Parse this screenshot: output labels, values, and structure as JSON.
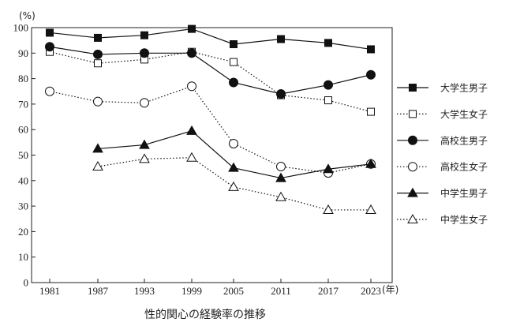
{
  "chart_data": {
    "type": "line",
    "title": "性的関心の経験率の推移",
    "y_unit_label": "(%)",
    "x_unit_label": "(年)",
    "x": [
      "1981",
      "1987",
      "1993",
      "1999",
      "2005",
      "2011",
      "2017",
      "2023"
    ],
    "ylim": [
      0,
      100
    ],
    "yticks": [
      0,
      10,
      20,
      30,
      40,
      50,
      60,
      70,
      80,
      90,
      100
    ],
    "grid": false,
    "legend_position": "right",
    "series": [
      {
        "name": "大学生男子",
        "marker": "filled-square",
        "line": "solid",
        "values": [
          98,
          96,
          97,
          99.5,
          93.5,
          95.5,
          94,
          91.5
        ]
      },
      {
        "name": "大学生女子",
        "marker": "open-square",
        "line": "dotted",
        "values": [
          90.5,
          86,
          87.5,
          90.5,
          86.5,
          73.5,
          71.5,
          67
        ]
      },
      {
        "name": "高校生男子",
        "marker": "filled-circle",
        "line": "solid",
        "values": [
          92.5,
          89.5,
          90,
          90,
          78.5,
          74,
          77.5,
          81.5
        ]
      },
      {
        "name": "高校生女子",
        "marker": "open-circle",
        "line": "dotted",
        "values": [
          75,
          71,
          70.5,
          77,
          54.5,
          45.5,
          43,
          46.5
        ]
      },
      {
        "name": "中学生男子",
        "marker": "filled-triangle",
        "line": "solid",
        "values": [
          null,
          52.5,
          54,
          59.5,
          45,
          41,
          44.5,
          46.5
        ]
      },
      {
        "name": "中学生女子",
        "marker": "open-triangle",
        "line": "dotted",
        "values": [
          null,
          45.5,
          48.5,
          49,
          37.5,
          33.5,
          28.5,
          28.5
        ]
      }
    ]
  }
}
